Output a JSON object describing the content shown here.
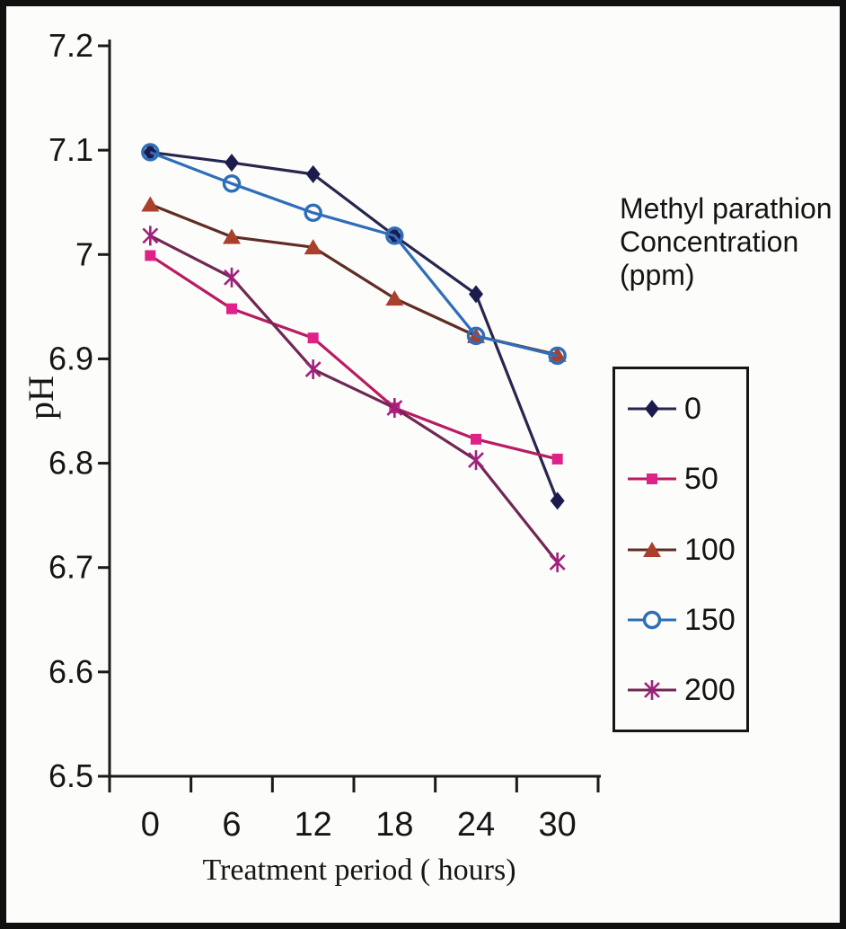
{
  "chart_data": {
    "type": "line",
    "xlabel": "Treatment period ( hours)",
    "ylabel": "pH",
    "categories": [
      "0",
      "6",
      "12",
      "18",
      "24",
      "30"
    ],
    "x_values": [
      0,
      6,
      12,
      18,
      24,
      30
    ],
    "ylim": [
      6.5,
      7.2
    ],
    "yticks": [
      "7.2",
      "7.1",
      "7",
      "6.9",
      "6.8",
      "6.7",
      "6.6",
      "6.5"
    ],
    "ytick_values": [
      7.2,
      7.1,
      7.0,
      6.9,
      6.8,
      6.7,
      6.6,
      6.5
    ],
    "grid": false,
    "legend_position": "right",
    "series": [
      {
        "name": "0",
        "marker": "diamond",
        "line_color": "#26264f",
        "marker_color": "#1b1b4e",
        "values": [
          7.098,
          7.088,
          7.077,
          7.018,
          6.962,
          6.764
        ]
      },
      {
        "name": "50",
        "marker": "square",
        "line_color": "#b81b62",
        "marker_color": "#e0218a",
        "values": [
          6.999,
          6.948,
          6.92,
          6.853,
          6.823,
          6.804
        ]
      },
      {
        "name": "100",
        "marker": "triangle",
        "line_color": "#5f2d25",
        "marker_color": "#a8402b",
        "values": [
          7.048,
          7.017,
          7.007,
          6.958,
          6.922,
          6.904
        ]
      },
      {
        "name": "150",
        "marker": "circle-open",
        "line_color": "#2e6db8",
        "marker_color": "#2e6db8",
        "values": [
          7.098,
          7.068,
          7.04,
          7.018,
          6.922,
          6.903
        ]
      },
      {
        "name": "200",
        "marker": "star",
        "line_color": "#6f2853",
        "marker_color": "#a1207d",
        "values": [
          7.018,
          6.978,
          6.89,
          6.853,
          6.803,
          6.705
        ]
      }
    ]
  },
  "legend": {
    "title_lines": [
      "Methyl parathion",
      "Concentration",
      "(ppm)"
    ],
    "items": [
      "0",
      "50",
      "100",
      "150",
      "200"
    ]
  },
  "axis_color": "#1a1a1a"
}
